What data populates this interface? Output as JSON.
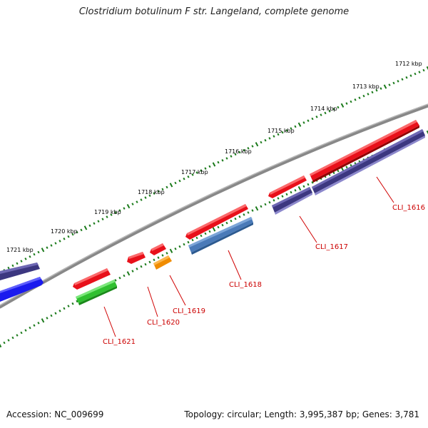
{
  "title": "Clostridium botulinum F str. Langeland, complete genome",
  "footer": {
    "accession": "Accession: NC_009699",
    "summary": "Topology: circular; Length: 3,995,387 bp; Genes: 3,781"
  },
  "scale_labels": [
    "1712 kbp",
    "1713 kbp",
    "1714 kbp",
    "1715 kbp",
    "1716 kbp",
    "1717 kbp",
    "1718 kbp",
    "1719 kbp",
    "1720 kbp",
    "1721 kbp"
  ],
  "gene_labels": {
    "cli_1616": "CLI_1616",
    "cli_1617": "CLI_1617",
    "cli_1618": "CLI_1618",
    "cli_1619": "CLI_1619",
    "cli_1620": "CLI_1620",
    "cli_1621": "CLI_1621"
  },
  "colors": {
    "red": "#e8101a",
    "navy": "#3c3780",
    "steel_blue": "#4a7ab8",
    "green": "#30c030",
    "orange": "#f08c00",
    "blue": "#1a1aee",
    "backbone": "#888888",
    "tick": "#1a7a1a",
    "leader": "#d00000"
  }
}
